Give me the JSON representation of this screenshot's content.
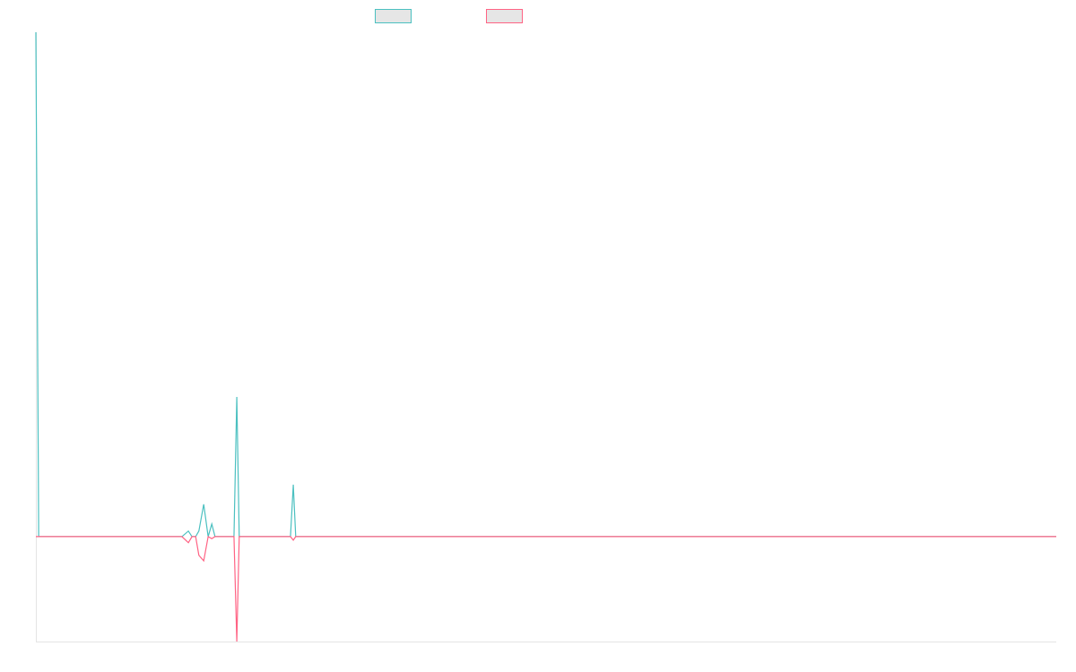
{
  "chart_data": {
    "type": "line",
    "x": [
      0,
      0.7,
      36.2,
      37.8,
      38.7,
      39.6,
      40.4,
      41.6,
      42.7,
      43.6,
      44.4,
      49.1,
      49.8,
      50.4,
      63.1,
      63.8,
      64.4,
      252.9
    ],
    "series": [
      {
        "color": "#4bc0c0",
        "values": [
          100,
          0,
          0,
          1.1,
          0,
          0,
          1.1,
          6.4,
          0,
          2.5,
          0,
          0,
          27.7,
          0,
          0,
          10.3,
          0,
          0
        ]
      },
      {
        "color": "#ff6384",
        "values": [
          0,
          0,
          0,
          -1.2,
          0,
          0,
          -3.7,
          -4.8,
          0,
          -0.4,
          0,
          0,
          -20.8,
          0,
          0,
          -0.7,
          0,
          0
        ]
      }
    ],
    "xlim": [
      0,
      252.9
    ],
    "ylim": [
      -20.8,
      100
    ],
    "legend": "top"
  }
}
